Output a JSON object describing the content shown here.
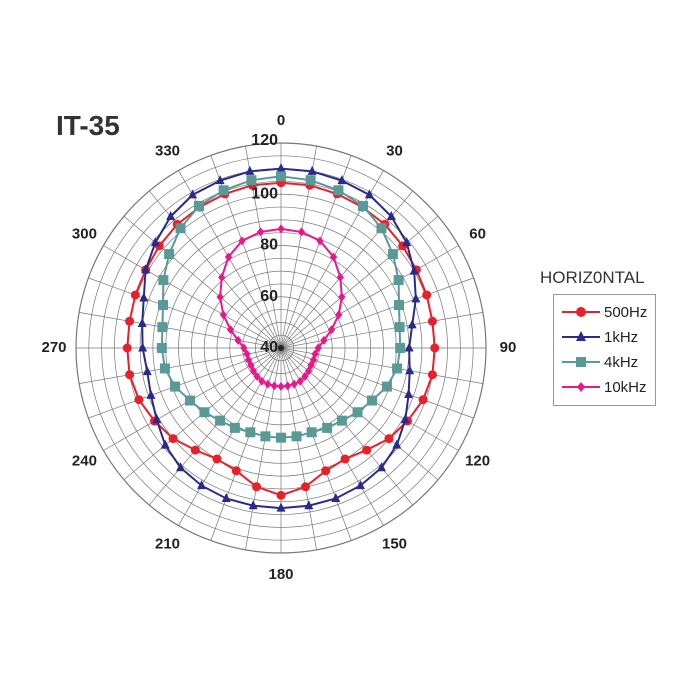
{
  "chart_data": {
    "type": "polar",
    "title": "IT-35",
    "legend_title": "HORIZ0NTAL",
    "legend_position": "right",
    "r_range": [
      40,
      120
    ],
    "r_ticks": [
      120,
      100,
      80,
      60,
      40
    ],
    "angle_ticks": [
      0,
      30,
      60,
      90,
      120,
      150,
      180,
      210,
      240,
      270,
      300,
      330
    ],
    "angles": [
      0,
      10,
      20,
      30,
      40,
      50,
      60,
      70,
      80,
      90,
      100,
      110,
      120,
      130,
      140,
      150,
      160,
      170,
      180,
      190,
      200,
      210,
      220,
      230,
      240,
      250,
      260,
      270,
      280,
      290,
      300,
      310,
      320,
      330,
      340,
      350
    ],
    "series": [
      {
        "name": "500Hz",
        "color": "#e8202a",
        "marker": "circle",
        "values": [
          104.5,
          104.5,
          104,
          103.5,
          103,
          102,
          101,
          100.5,
          100,
          100,
          100,
          99,
          97,
          95,
          92,
          90,
          91,
          95,
          97.5,
          95,
          91,
          90,
          92,
          95,
          97,
          99,
          100,
          100,
          100,
          100.5,
          101,
          102,
          103,
          103.5,
          104,
          104.5
        ]
      },
      {
        "name": "1kHz",
        "color": "#2a2a8c",
        "marker": "triangle",
        "values": [
          110,
          110,
          109.5,
          109,
          107,
          104,
          100,
          96,
          92,
          90,
          91,
          93,
          96,
          99,
          101,
          102,
          102.5,
          102.5,
          102.5,
          102.5,
          102.5,
          102,
          101,
          99,
          96,
          94,
          93,
          94,
          95,
          97,
          101,
          104,
          107,
          109,
          109.5,
          110
        ]
      },
      {
        "name": "4kHz",
        "color": "#5a9a96",
        "marker": "square",
        "values": [
          107,
          106.5,
          105.5,
          104,
          101,
          97,
          93,
          89,
          87,
          86.5,
          86,
          84,
          81,
          79,
          77,
          76,
          75,
          75,
          75,
          75,
          75,
          76,
          77,
          79,
          81,
          84,
          86,
          86.5,
          87,
          89,
          93,
          97,
          101,
          104,
          105.5,
          106.5
        ]
      },
      {
        "name": "10kHz",
        "color": "#e8188c",
        "marker": "diamond",
        "values": [
          86.5,
          86,
          84.5,
          81,
          76,
          71,
          66,
          61,
          57,
          54.5,
          53.5,
          53.5,
          53.5,
          54,
          54.5,
          55,
          55,
          55,
          55,
          55,
          55,
          55,
          54.5,
          54,
          53.5,
          53.5,
          53.5,
          54.5,
          57,
          61,
          66,
          71,
          76,
          81,
          84.5,
          86
        ]
      }
    ]
  }
}
